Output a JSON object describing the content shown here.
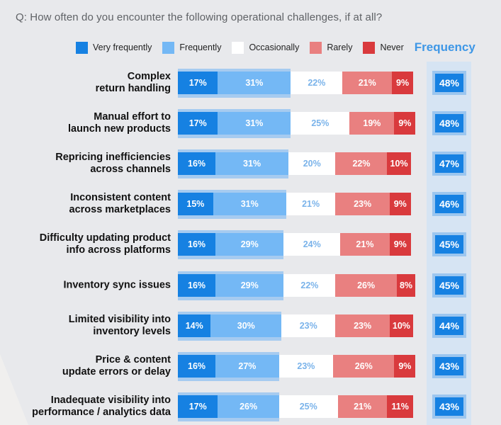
{
  "chart_data": {
    "type": "bar",
    "orientation": "horizontal",
    "stacked": true,
    "title": "Q: How often do you encounter the following operational challenges, if at all?",
    "xlabel": "",
    "ylabel": "",
    "xlim": [
      0,
      100
    ],
    "legend_position": "top-right",
    "categories": [
      "Complex return handling",
      "Manual effort to launch new products",
      "Repricing inefficiencies across channels",
      "Inconsistent content across marketplaces",
      "Difficulty updating product info across platforms",
      "Inventory sync issues",
      "Limited visibility into inventory levels",
      "Price & content update errors or delay",
      "Inadequate visibility into performance / analytics data"
    ],
    "category_lines": [
      [
        "Complex",
        "return handling"
      ],
      [
        "Manual effort to",
        "launch new products"
      ],
      [
        "Repricing inefficiencies",
        "across channels"
      ],
      [
        "Inconsistent content",
        "across marketplaces"
      ],
      [
        "Difficulty updating product",
        "info across platforms"
      ],
      [
        "Inventory sync issues"
      ],
      [
        "Limited visibility into",
        "inventory levels"
      ],
      [
        "Price & content",
        "update errors or delay"
      ],
      [
        "Inadequate visibility into",
        "performance / analytics data"
      ]
    ],
    "series": [
      {
        "name": "Very frequently",
        "color": "#1681e2",
        "text_color": "#ffffff",
        "values": [
          17,
          17,
          16,
          15,
          16,
          16,
          14,
          16,
          17
        ]
      },
      {
        "name": "Frequently",
        "color": "#74b8f5",
        "text_color": "#ffffff",
        "values": [
          31,
          31,
          31,
          31,
          29,
          29,
          30,
          27,
          26
        ]
      },
      {
        "name": "Occasionally",
        "color": "#ffffff",
        "text_color": "#7ab3ea",
        "values": [
          22,
          25,
          20,
          21,
          24,
          22,
          23,
          23,
          25
        ]
      },
      {
        "name": "Rarely",
        "color": "#e98080",
        "text_color": "#ffffff",
        "values": [
          21,
          19,
          22,
          23,
          21,
          26,
          23,
          26,
          21
        ]
      },
      {
        "name": "Never",
        "color": "#d93a3d",
        "text_color": "#ffffff",
        "values": [
          9,
          9,
          10,
          9,
          9,
          8,
          10,
          9,
          11
        ]
      }
    ],
    "frequency": {
      "label": "Frequency",
      "values": [
        48,
        48,
        47,
        46,
        45,
        45,
        44,
        43,
        43
      ]
    },
    "value_suffix": "%"
  }
}
